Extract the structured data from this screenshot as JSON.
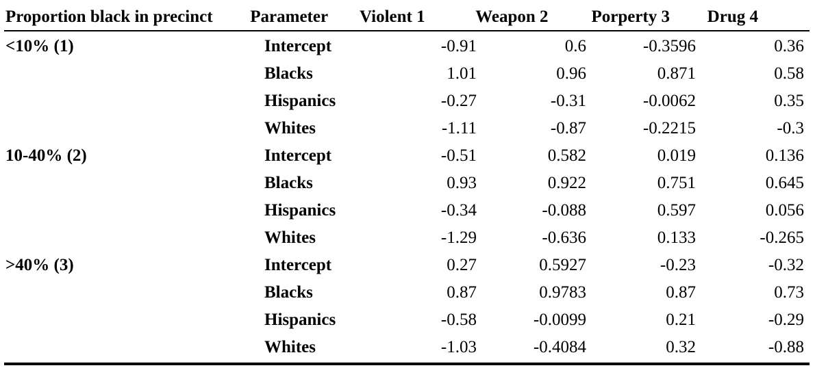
{
  "header": {
    "group": "Proportion black in precinct",
    "parameter": "Parameter",
    "violent": "Violent 1",
    "weapon": "Weapon 2",
    "property": "Porperty 3",
    "drug": "Drug 4"
  },
  "rows": [
    {
      "group": "<10% (1)",
      "param": "Intercept",
      "violent": "-0.91",
      "weapon": "0.6",
      "property": "-0.3596",
      "drug": "0.36"
    },
    {
      "group": "",
      "param": "Blacks",
      "violent": "1.01",
      "weapon": "0.96",
      "property": "0.871",
      "drug": "0.58"
    },
    {
      "group": "",
      "param": "Hispanics",
      "violent": "-0.27",
      "weapon": "-0.31",
      "property": "-0.0062",
      "drug": "0.35"
    },
    {
      "group": "",
      "param": "Whites",
      "violent": "-1.11",
      "weapon": "-0.87",
      "property": "-0.2215",
      "drug": "-0.3"
    },
    {
      "group": "10-40% (2)",
      "param": "Intercept",
      "violent": "-0.51",
      "weapon": "0.582",
      "property": "0.019",
      "drug": "0.136"
    },
    {
      "group": "",
      "param": "Blacks",
      "violent": "0.93",
      "weapon": "0.922",
      "property": "0.751",
      "drug": "0.645"
    },
    {
      "group": "",
      "param": "Hispanics",
      "violent": "-0.34",
      "weapon": "-0.088",
      "property": "0.597",
      "drug": "0.056"
    },
    {
      "group": "",
      "param": "Whites",
      "violent": "-1.29",
      "weapon": "-0.636",
      "property": "0.133",
      "drug": "-0.265"
    },
    {
      "group": ">40% (3)",
      "param": "Intercept",
      "violent": "0.27",
      "weapon": "0.5927",
      "property": "-0.23",
      "drug": "-0.32"
    },
    {
      "group": "",
      "param": "Blacks",
      "violent": "0.87",
      "weapon": "0.9783",
      "property": "0.87",
      "drug": "0.73"
    },
    {
      "group": "",
      "param": "Hispanics",
      "violent": "-0.58",
      "weapon": "-0.0099",
      "property": "0.21",
      "drug": "-0.29"
    },
    {
      "group": "",
      "param": "Whites",
      "violent": "-1.03",
      "weapon": "-0.4084",
      "property": "0.32",
      "drug": "-0.88"
    }
  ]
}
